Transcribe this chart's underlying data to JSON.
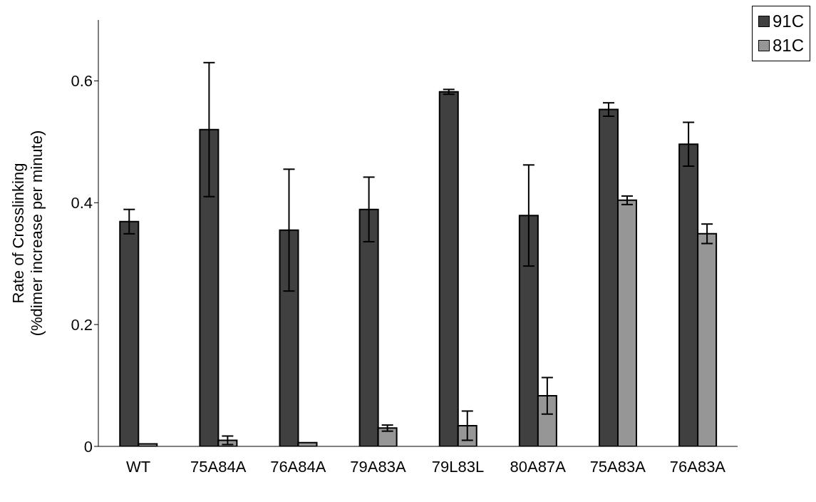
{
  "chart_data": {
    "type": "bar",
    "ylabel": "Rate of Crosslinking\n(%dimer increase per minute)",
    "categories": [
      "WT",
      "75A84A",
      "76A84A",
      "79A83A",
      "79L83L",
      "80A87A",
      "75A83A",
      "76A83A"
    ],
    "series": [
      {
        "name": "91C",
        "color": "#404040",
        "values": [
          0.369,
          0.52,
          0.355,
          0.389,
          0.582,
          0.379,
          0.553,
          0.496
        ],
        "errors": [
          0.02,
          0.11,
          0.1,
          0.053,
          0.004,
          0.083,
          0.011,
          0.036
        ]
      },
      {
        "name": "81C",
        "color": "#969696",
        "values": [
          0.004,
          0.01,
          0.006,
          0.03,
          0.034,
          0.083,
          0.404,
          0.349
        ],
        "errors": [
          null,
          0.007,
          null,
          0.005,
          0.024,
          0.03,
          0.007,
          0.016
        ]
      }
    ],
    "ylim": [
      0,
      0.7
    ],
    "yticks": [
      0,
      0.2,
      0.4,
      0.6
    ],
    "grid": false,
    "legend": "top right"
  }
}
